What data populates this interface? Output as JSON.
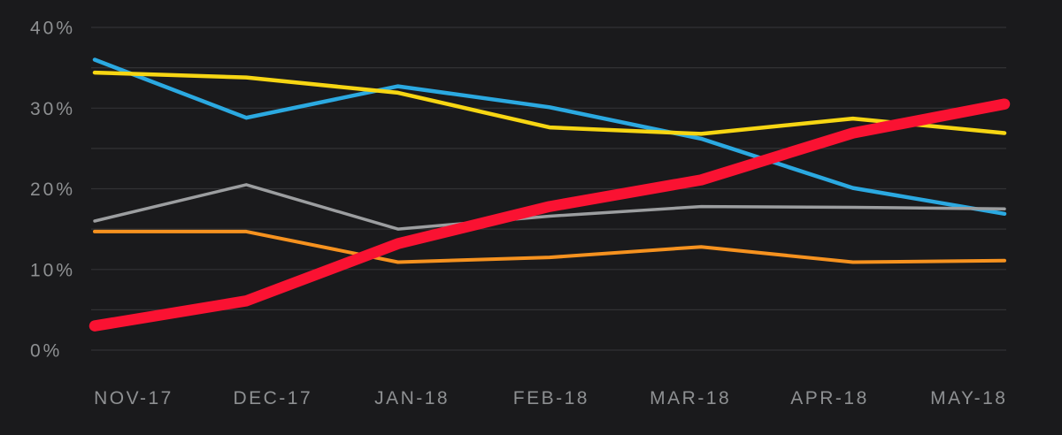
{
  "chart_data": {
    "type": "line",
    "title": "",
    "categories": [
      "NOV-17",
      "DEC-17",
      "JAN-18",
      "FEB-18",
      "MAR-18",
      "APR-18",
      "MAY-18"
    ],
    "series": [
      {
        "name": "blue",
        "color": "#2ba9e1",
        "stroke_width": 4.5,
        "values": [
          36.0,
          28.8,
          32.7,
          30.1,
          26.2,
          20.1,
          16.9
        ]
      },
      {
        "name": "yellow",
        "color": "#f7d613",
        "stroke_width": 4.5,
        "values": [
          34.4,
          33.8,
          31.9,
          27.6,
          26.8,
          28.7,
          26.9
        ]
      },
      {
        "name": "gray",
        "color": "#9c9ea0",
        "stroke_width": 3.5,
        "values": [
          16.0,
          20.5,
          15.0,
          16.6,
          17.8,
          17.7,
          17.5
        ]
      },
      {
        "name": "orange",
        "color": "#f6921f",
        "stroke_width": 4.0,
        "values": [
          14.7,
          14.7,
          10.9,
          11.5,
          12.8,
          10.9,
          11.1
        ]
      },
      {
        "name": "red",
        "color": "#fa1232",
        "stroke_width": 12.5,
        "values": [
          3.0,
          6.1,
          13.2,
          17.8,
          21.1,
          26.9,
          30.5
        ]
      }
    ],
    "y_axis": {
      "min": 0,
      "max": 40,
      "tick_step": 10,
      "grid_step": 5,
      "tick_labels": [
        "0%",
        "10%",
        "20%",
        "30%",
        "40%"
      ],
      "unit": "%"
    },
    "x_axis": {
      "tick_labels": [
        "NOV-17",
        "DEC-17",
        "JAN-18",
        "FEB-18",
        "MAR-18",
        "APR-18",
        "MAY-18"
      ]
    },
    "grid": true,
    "legend": "none",
    "colors": {
      "background": "#1a1a1c",
      "grid": "#323234",
      "axis_text": "#8e9092"
    }
  }
}
